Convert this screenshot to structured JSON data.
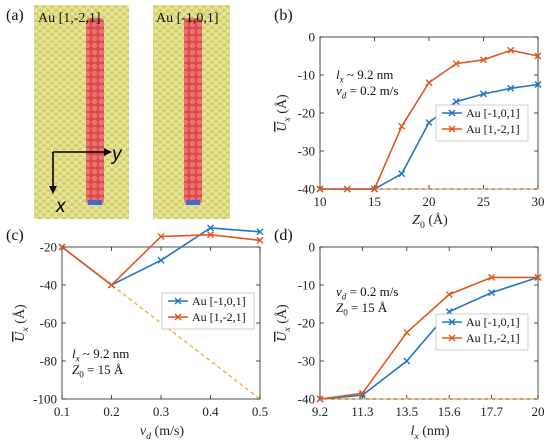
{
  "panel_labels": [
    "(a)",
    "(b)",
    "(c)",
    "(d)"
  ],
  "panel_a": {
    "left_label": "Au [1,-2,1]",
    "right_label": "Au [-1,0,1]",
    "axis_x": "x",
    "axis_y": "y",
    "colors": {
      "substrate": "#f1ef9b",
      "substrate_edge": "#c9c46a",
      "chain": "#e15b5b",
      "chain_end": "#4a63d6"
    }
  },
  "chart_data": [
    {
      "panel": "(b)",
      "type": "line",
      "xlabel": "Z0 (Å)",
      "ylabel": "Ux (Å)",
      "xlim": [
        10,
        30
      ],
      "ylim": [
        -40,
        0
      ],
      "xticks": [
        10,
        15,
        20,
        25,
        30
      ],
      "yticks": [
        0,
        -10,
        -20,
        -30,
        -40
      ],
      "annotation": [
        "lx ~ 9.2 nm",
        "vd = 0.2 m/s"
      ],
      "legend_position": "right",
      "series": [
        {
          "name": "Au [-1,0,1]",
          "color": "#1f77c4",
          "x": [
            10,
            12.5,
            15,
            17.5,
            20,
            22.5,
            25,
            27.5,
            30
          ],
          "y": [
            -40,
            -40,
            -40,
            -36,
            -22.5,
            -17,
            -15,
            -13.5,
            -12.5
          ]
        },
        {
          "name": "Au [1,-2,1]",
          "color": "#e2571e",
          "x": [
            10,
            12.5,
            15,
            17.5,
            20,
            22.5,
            25,
            27.5,
            30
          ],
          "y": [
            -40,
            -40,
            -40,
            -23.5,
            -12,
            -7,
            -6,
            -3.5,
            -5
          ]
        }
      ],
      "reference_line": {
        "color": "#f2a93b",
        "x": [
          10,
          30
        ],
        "y": [
          -40,
          -40
        ]
      }
    },
    {
      "panel": "(c)",
      "type": "line",
      "xlabel": "vd (m/s)",
      "ylabel": "Ux (Å)",
      "xlim": [
        0.1,
        0.5
      ],
      "ylim": [
        -100,
        -20
      ],
      "xticks": [
        0.1,
        0.2,
        0.3,
        0.4,
        0.5
      ],
      "yticks": [
        -20,
        -40,
        -60,
        -80,
        -100
      ],
      "annotation": [
        "lx ~ 9.2 nm",
        "Z0 = 15 Å"
      ],
      "legend_position": "right",
      "series": [
        {
          "name": "Au [-1,0,1]",
          "color": "#1f77c4",
          "x": [
            0.1,
            0.2,
            0.3,
            0.4,
            0.5
          ],
          "y": [
            -20,
            -40,
            -27,
            -10,
            -12
          ]
        },
        {
          "name": "Au [1,-2,1]",
          "color": "#e2571e",
          "x": [
            0.1,
            0.2,
            0.3,
            0.4,
            0.5
          ],
          "y": [
            -20,
            -40,
            -14.5,
            -13.5,
            -16.5
          ]
        }
      ],
      "reference_line": {
        "color": "#f2a93b",
        "x": [
          0.1,
          0.5
        ],
        "y": [
          -20,
          -100
        ]
      }
    },
    {
      "panel": "(d)",
      "type": "line",
      "xlabel": "lx (nm)",
      "ylabel": "Ux (Å)",
      "xlim": [
        9.2,
        20
      ],
      "ylim": [
        -40,
        0
      ],
      "xticks": [
        9.2,
        11.3,
        13.5,
        15.6,
        17.7,
        20
      ],
      "yticks": [
        0,
        -10,
        -20,
        -30,
        -40
      ],
      "annotation": [
        "vd = 0.2 m/s",
        "Z0 = 15 Å"
      ],
      "legend_position": "right",
      "series": [
        {
          "name": "Au [-1,0,1]",
          "color": "#1f77c4",
          "x": [
            9.2,
            11.3,
            13.5,
            15.6,
            17.7,
            20
          ],
          "y": [
            -40,
            -39,
            -30,
            -17,
            -12,
            -8
          ]
        },
        {
          "name": "Au [1,-2,1]",
          "color": "#e2571e",
          "x": [
            9.2,
            11.3,
            13.5,
            15.6,
            17.7,
            20
          ],
          "y": [
            -40,
            -38.5,
            -22.5,
            -12.5,
            -8,
            -8
          ]
        }
      ],
      "reference_line": {
        "color": "#f2a93b",
        "x": [
          9.2,
          20
        ],
        "y": [
          -40,
          -40
        ]
      }
    }
  ]
}
